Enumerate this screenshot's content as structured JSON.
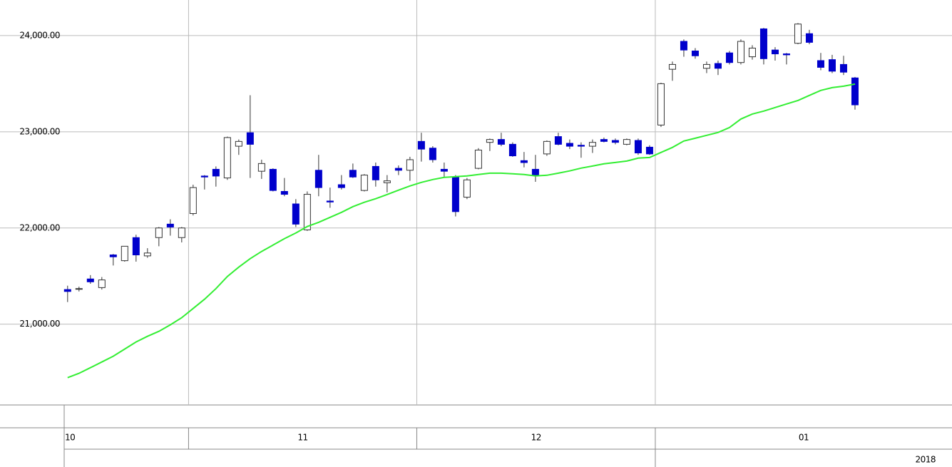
{
  "chart_data": {
    "type": "candlestick",
    "up_color": "#ffffff",
    "down_color": "#0000cc",
    "outline_color": "#333333",
    "ma_color": "#33ee33",
    "grid": true,
    "ylim": [
      20160,
      24370
    ],
    "yticks": [
      {
        "value": 21000,
        "label": "21,000.00"
      },
      {
        "value": 22000,
        "label": "22,000.00"
      },
      {
        "value": 23000,
        "label": "23,000.00"
      },
      {
        "value": 24000,
        "label": "24,000.00"
      }
    ],
    "xlim": [
      -0.3,
      77.5
    ],
    "xticks": [
      {
        "value": -0.3,
        "label": "10"
      },
      {
        "value": 10.6,
        "label": "11"
      },
      {
        "value": 30.6,
        "label": "12"
      },
      {
        "value": 51.5,
        "label": "01"
      }
    ],
    "year_label": "2018",
    "open": [
      21360,
      21370,
      21470,
      21380,
      21720,
      21660,
      21900,
      21710,
      21900,
      22040,
      21900,
      22150,
      22540,
      22610,
      22520,
      22850,
      22990,
      22590,
      22610,
      22380,
      22250,
      21980,
      22600,
      22280,
      22450,
      22600,
      22390,
      22640,
      22470,
      22620,
      22600,
      22900,
      22830,
      22610,
      22530,
      22320,
      22620,
      22890,
      22920,
      22870,
      22700,
      22610,
      22770,
      22950,
      22880,
      22860,
      22850,
      22920,
      22910,
      22870,
      22910,
      22840,
      23070,
      23650,
      23940,
      23840,
      23660,
      23710,
      23820,
      23720,
      23780,
      24070,
      23850,
      23810,
      23920,
      24020,
      23740,
      23750,
      23700,
      23560
    ],
    "high": [
      21400,
      21390,
      21510,
      21490,
      21730,
      21810,
      21930,
      21790,
      22010,
      22090,
      22010,
      22450,
      22550,
      22640,
      22950,
      22920,
      23380,
      22710,
      22620,
      22520,
      22300,
      22380,
      22760,
      22420,
      22550,
      22670,
      22560,
      22680,
      22550,
      22650,
      22740,
      22990,
      22850,
      22680,
      22550,
      22520,
      22830,
      22930,
      22990,
      22890,
      22790,
      22760,
      22910,
      22990,
      22920,
      22890,
      22920,
      22940,
      22930,
      22930,
      22930,
      22860,
      23510,
      23730,
      23960,
      23870,
      23730,
      23740,
      23840,
      23960,
      23900,
      24080,
      23880,
      23820,
      24130,
      24060,
      23820,
      23800,
      23790,
      23570
    ],
    "low": [
      21230,
      21340,
      21420,
      21360,
      21610,
      21650,
      21650,
      21690,
      21810,
      21920,
      21850,
      22130,
      22400,
      22430,
      22500,
      22760,
      22520,
      22510,
      22380,
      22330,
      22010,
      21970,
      22330,
      22210,
      22400,
      22520,
      22380,
      22430,
      22370,
      22550,
      22490,
      22690,
      22680,
      22520,
      22120,
      22300,
      22610,
      22800,
      22850,
      22740,
      22630,
      22480,
      22750,
      22860,
      22820,
      22730,
      22780,
      22890,
      22870,
      22860,
      22760,
      22760,
      23050,
      23530,
      23780,
      23760,
      23610,
      23590,
      23700,
      23700,
      23750,
      23700,
      23740,
      23700,
      23910,
      23910,
      23640,
      23610,
      23590,
      23230
    ],
    "close": [
      21340,
      21370,
      21440,
      21460,
      21700,
      21810,
      21720,
      21740,
      22000,
      22010,
      22000,
      22420,
      22530,
      22540,
      22940,
      22900,
      22870,
      22670,
      22390,
      22350,
      22040,
      22350,
      22420,
      22270,
      22420,
      22530,
      22550,
      22500,
      22490,
      22600,
      22710,
      22820,
      22710,
      22590,
      22170,
      22500,
      22810,
      22920,
      22870,
      22750,
      22680,
      22550,
      22900,
      22870,
      22850,
      22850,
      22890,
      22900,
      22890,
      22920,
      22780,
      22770,
      23500,
      23700,
      23850,
      23790,
      23700,
      23660,
      23720,
      23940,
      23870,
      23760,
      23810,
      23800,
      24120,
      23930,
      23670,
      23630,
      23620,
      23280
    ],
    "ma": [
      20444,
      20489,
      20548,
      20607,
      20667,
      20741,
      20815,
      20874,
      20926,
      20993,
      21067,
      21163,
      21259,
      21370,
      21496,
      21593,
      21681,
      21756,
      21822,
      21889,
      21948,
      22015,
      22059,
      22111,
      22163,
      22222,
      22267,
      22304,
      22348,
      22393,
      22437,
      22474,
      22504,
      22526,
      22533,
      22541,
      22556,
      22570,
      22570,
      22563,
      22556,
      22541,
      22548,
      22570,
      22593,
      22622,
      22644,
      22667,
      22681,
      22696,
      22726,
      22733,
      22785,
      22837,
      22904,
      22933,
      22963,
      22993,
      23044,
      23133,
      23185,
      23215,
      23252,
      23289,
      23326,
      23378,
      23430,
      23459,
      23474,
      23496
    ]
  }
}
